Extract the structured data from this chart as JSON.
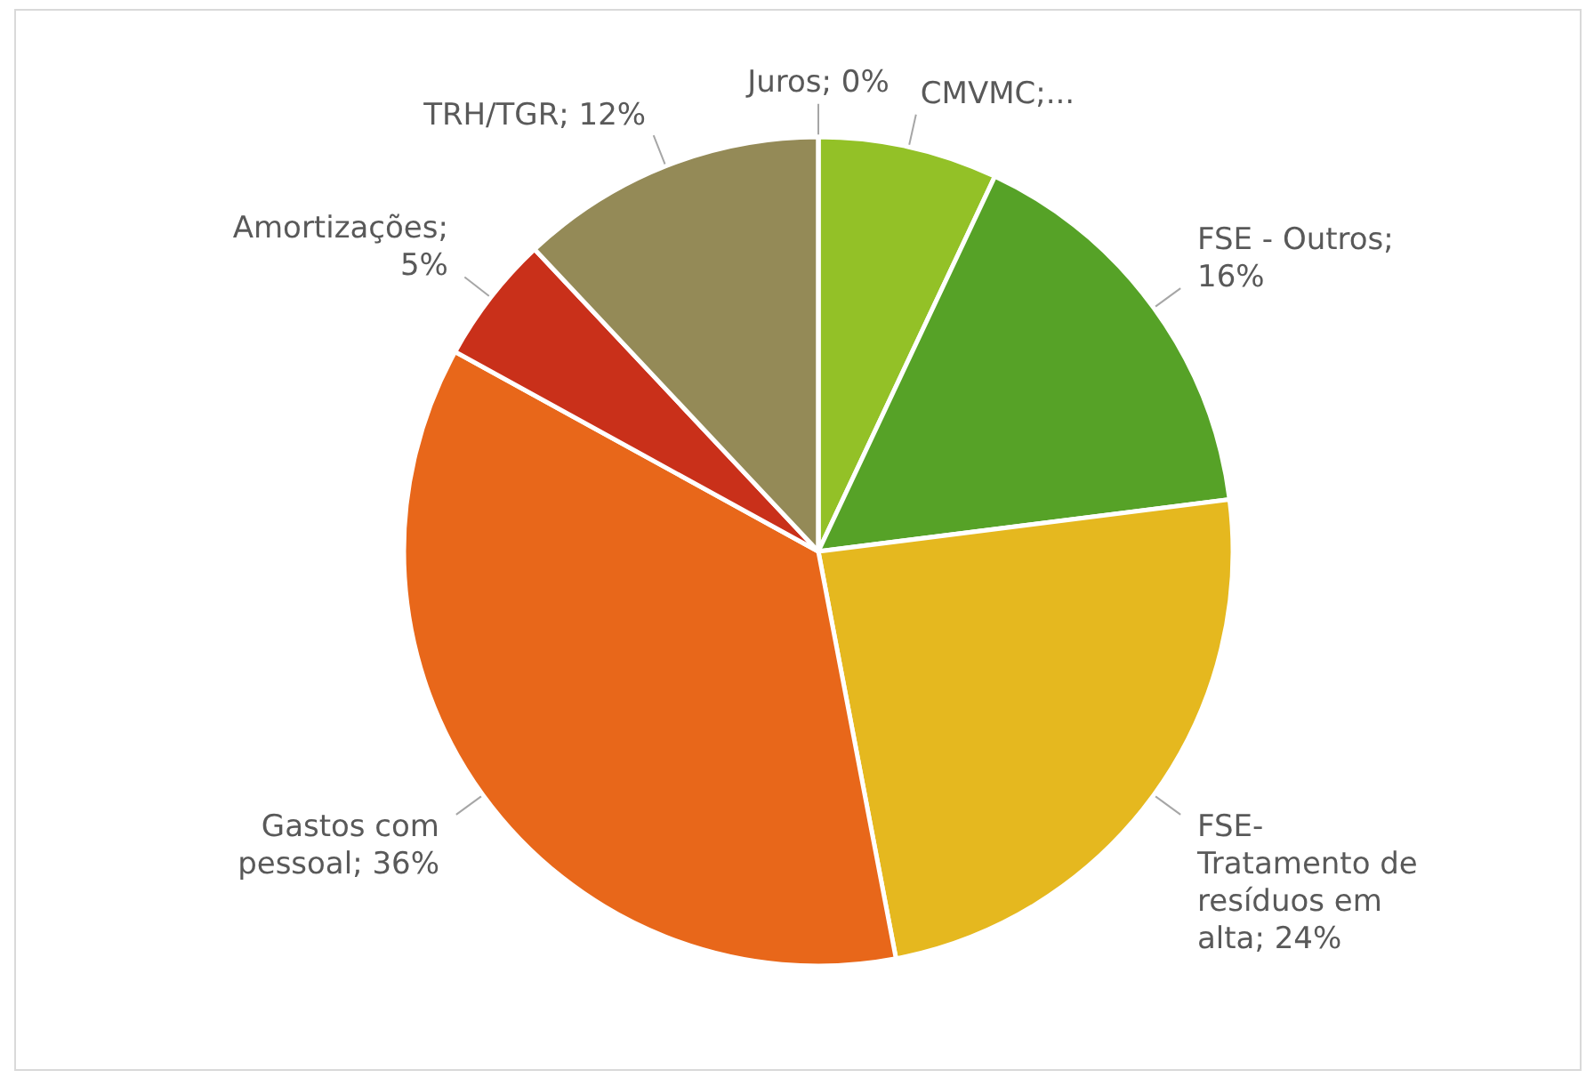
{
  "chart_data": {
    "type": "pie",
    "categories": [
      "CMVMC",
      "FSE - Outros",
      "FSE-Tratamento de resíduos em alta",
      "Gastos com pessoal",
      "Amortizações",
      "TRH/TGR",
      "Juros"
    ],
    "values": [
      7,
      16,
      24,
      36,
      5,
      12,
      0
    ],
    "colors": [
      "#93c127",
      "#56a227",
      "#e5b81f",
      "#e8671a",
      "#c9301a",
      "#948a57",
      "#4f81bd"
    ],
    "value_labels": [
      ";...",
      "; 16%",
      "; 24%",
      "; 36%",
      "; 5%",
      "; 12%",
      "; 0%"
    ],
    "legend": false
  }
}
